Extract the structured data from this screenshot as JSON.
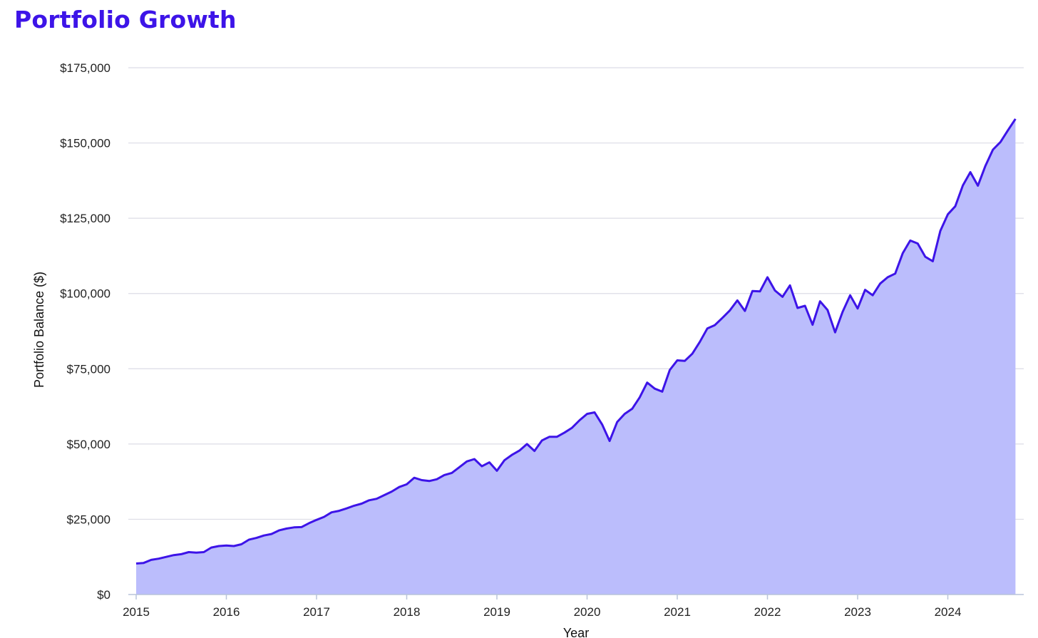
{
  "title": "Portfolio Growth",
  "colors": {
    "title": "#3d14e8",
    "line": "#3d14e8",
    "fill": "#bbbdfc",
    "grid": "#dcdce6",
    "axis": "#b8c4da"
  },
  "chart_data": {
    "type": "area",
    "title": "Portfolio Growth",
    "xlabel": "Year",
    "ylabel": "Portfolio Balance ($)",
    "xlim": [
      2015,
      2024.9
    ],
    "ylim": [
      0,
      175000
    ],
    "x_ticks": [
      "2015",
      "2016",
      "2017",
      "2018",
      "2019",
      "2020",
      "2021",
      "2022",
      "2023",
      "2024"
    ],
    "y_ticks": [
      "$0",
      "$25,000",
      "$50,000",
      "$75,000",
      "$100,000",
      "$125,000",
      "$150,000",
      "$175,000"
    ],
    "grid": "horizontal",
    "legend": "none",
    "series": [
      {
        "start": "2015-01",
        "frequency": "monthly",
        "values": [
          10300,
          10500,
          11500,
          11900,
          12500,
          13100,
          13400,
          14100,
          13900,
          14100,
          15600,
          16100,
          16300,
          16100,
          16700,
          18200,
          18800,
          19600,
          20100,
          21300,
          21900,
          22300,
          22400,
          23700,
          24800,
          25800,
          27300,
          27800,
          28600,
          29500,
          30200,
          31300,
          31800,
          33000,
          34200,
          35700,
          36600,
          38800,
          38000,
          37700,
          38300,
          39700,
          40400,
          42300,
          44200,
          45000,
          42600,
          43900,
          41100,
          44600,
          46400,
          47800,
          50000,
          47700,
          51200,
          52400,
          52400,
          53800,
          55400,
          57900,
          60000,
          60500,
          56500,
          51000,
          57300,
          60000,
          61700,
          65500,
          70400,
          68400,
          67400,
          74600,
          77800,
          77600,
          80000,
          83900,
          88400,
          89500,
          91900,
          94400,
          97700,
          94200,
          100800,
          100700,
          105400,
          101000,
          98900,
          102700,
          95200,
          95900,
          89600,
          97400,
          94500,
          87100,
          93900,
          99400,
          95000,
          101200,
          99400,
          103300,
          105400,
          106600,
          113400,
          117600,
          116600,
          112200,
          110700,
          120800,
          126300,
          129000,
          135900,
          140300,
          135800,
          142400,
          147800,
          150300,
          154200,
          158000
        ]
      }
    ]
  }
}
